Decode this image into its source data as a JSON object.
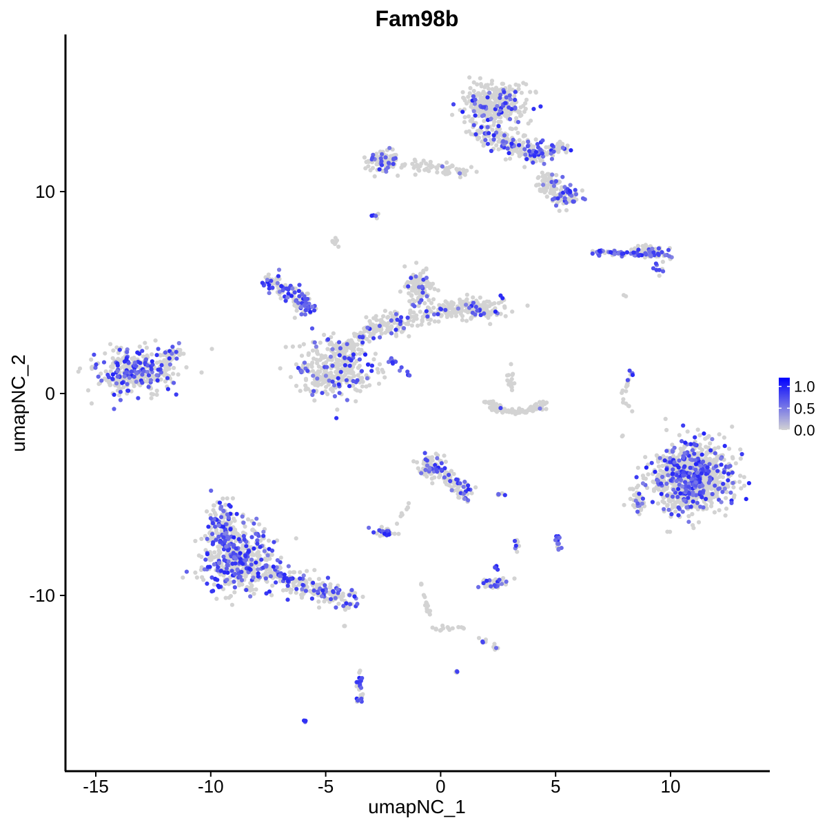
{
  "chart_data": {
    "type": "scatter",
    "title": "Fam98b",
    "xlabel": "umapNC_1",
    "ylabel": "umapNC_2",
    "xlim": [
      -16.5,
      14.5
    ],
    "ylim": [
      -18.5,
      17.8
    ],
    "x_ticks": [
      -15,
      -10,
      -5,
      0,
      5,
      10
    ],
    "x_tick_labels": [
      "-15",
      "-10",
      "-5",
      "0",
      "5",
      "10"
    ],
    "y_ticks": [
      -10,
      0,
      10
    ],
    "y_tick_labels": [
      "-10",
      "0",
      "10"
    ],
    "grid": false,
    "legend": {
      "position": "right",
      "type": "colorbar",
      "min": 0.0,
      "max": 1.2,
      "ticks": [
        0.0,
        0.5,
        1.0
      ],
      "tick_labels": [
        "0.0",
        "0.5",
        "1.0"
      ]
    },
    "colors": {
      "low": "#d3d3d3",
      "high": "#0000ff"
    },
    "clusters": [
      {
        "shape": "blob",
        "center": [
          -13.3,
          1.1
        ],
        "spread": [
          1.6,
          1.0
        ],
        "n": 320,
        "expr_rate": 0.28,
        "seed": 1
      },
      {
        "shape": "blob",
        "center": [
          -11.8,
          1.9
        ],
        "spread": [
          0.5,
          0.4
        ],
        "n": 40,
        "expr_rate": 0.2,
        "seed": 2
      },
      {
        "shape": "line",
        "from": [
          -7.5,
          5.7
        ],
        "to": [
          -5.5,
          4.0
        ],
        "width": 0.5,
        "n": 120,
        "expr_rate": 0.55,
        "seed": 3
      },
      {
        "shape": "blob",
        "center": [
          -4.6,
          1.2
        ],
        "spread": [
          1.6,
          1.3
        ],
        "n": 330,
        "expr_rate": 0.18,
        "seed": 4
      },
      {
        "shape": "line",
        "from": [
          -4.5,
          2.0
        ],
        "to": [
          -2.0,
          4.0
        ],
        "width": 0.4,
        "n": 110,
        "expr_rate": 0.1,
        "seed": 5
      },
      {
        "shape": "blob",
        "center": [
          -0.9,
          5.2
        ],
        "spread": [
          0.6,
          0.9
        ],
        "n": 110,
        "expr_rate": 0.15,
        "seed": 6
      },
      {
        "shape": "blob",
        "center": [
          1.6,
          4.2
        ],
        "spread": [
          1.2,
          0.5
        ],
        "n": 150,
        "expr_rate": 0.1,
        "seed": 7
      },
      {
        "shape": "line",
        "from": [
          -3.0,
          3.0
        ],
        "to": [
          1.0,
          4.3
        ],
        "width": 0.5,
        "n": 120,
        "expr_rate": 0.08,
        "seed": 8
      },
      {
        "shape": "line",
        "from": [
          -2.2,
          1.7
        ],
        "to": [
          -1.3,
          0.8
        ],
        "width": 0.12,
        "n": 18,
        "expr_rate": 0.7,
        "seed": 9
      },
      {
        "shape": "blob",
        "center": [
          -4.6,
          7.5
        ],
        "spread": [
          0.2,
          0.2
        ],
        "n": 10,
        "expr_rate": 0.0,
        "seed": 10
      },
      {
        "shape": "blob",
        "center": [
          -2.8,
          8.8
        ],
        "spread": [
          0.15,
          0.1
        ],
        "n": 6,
        "expr_rate": 0.5,
        "seed": 11
      },
      {
        "shape": "blob",
        "center": [
          -2.5,
          11.5
        ],
        "spread": [
          0.7,
          0.5
        ],
        "n": 110,
        "expr_rate": 0.15,
        "seed": 12
      },
      {
        "shape": "line",
        "from": [
          -1.5,
          11.3
        ],
        "to": [
          1.5,
          11.0
        ],
        "width": 0.3,
        "n": 60,
        "expr_rate": 0.1,
        "seed": 13
      },
      {
        "shape": "blob",
        "center": [
          2.3,
          14.3
        ],
        "spread": [
          1.3,
          0.9
        ],
        "n": 380,
        "expr_rate": 0.12,
        "seed": 14
      },
      {
        "shape": "line",
        "from": [
          1.5,
          13.0
        ],
        "to": [
          4.5,
          11.8
        ],
        "width": 0.6,
        "n": 220,
        "expr_rate": 0.25,
        "seed": 15
      },
      {
        "shape": "blob",
        "center": [
          4.7,
          10.5
        ],
        "spread": [
          0.5,
          0.5
        ],
        "n": 60,
        "expr_rate": 0.2,
        "seed": 16
      },
      {
        "shape": "blob",
        "center": [
          5.5,
          9.7
        ],
        "spread": [
          0.6,
          0.5
        ],
        "n": 70,
        "expr_rate": 0.4,
        "seed": 17
      },
      {
        "shape": "line",
        "from": [
          4.0,
          12.0
        ],
        "to": [
          5.5,
          12.1
        ],
        "width": 0.3,
        "n": 50,
        "expr_rate": 0.3,
        "seed": 18
      },
      {
        "shape": "line",
        "from": [
          6.7,
          7.0
        ],
        "to": [
          10.0,
          6.8
        ],
        "width": 0.15,
        "n": 90,
        "expr_rate": 0.45,
        "seed": 19
      },
      {
        "shape": "blob",
        "center": [
          9.0,
          7.1
        ],
        "spread": [
          0.6,
          0.2
        ],
        "n": 50,
        "expr_rate": 0.2,
        "seed": 20
      },
      {
        "shape": "blob",
        "center": [
          9.5,
          6.2
        ],
        "spread": [
          0.3,
          0.3
        ],
        "n": 10,
        "expr_rate": 0.5,
        "seed": 21
      },
      {
        "shape": "line",
        "from": [
          8.0,
          0.0
        ],
        "to": [
          8.3,
          1.1
        ],
        "width": 0.1,
        "n": 14,
        "expr_rate": 0.4,
        "seed": 22
      },
      {
        "shape": "line",
        "from": [
          7.9,
          -0.2
        ],
        "to": [
          8.3,
          -0.9
        ],
        "width": 0.08,
        "n": 6,
        "expr_rate": 0.1,
        "seed": 23
      },
      {
        "shape": "blob",
        "center": [
          10.9,
          -4.2
        ],
        "spread": [
          1.6,
          1.6
        ],
        "n": 900,
        "expr_rate": 0.26,
        "seed": 24
      },
      {
        "shape": "blob",
        "center": [
          8.6,
          -5.2
        ],
        "spread": [
          0.3,
          0.6
        ],
        "n": 30,
        "expr_rate": 0.2,
        "seed": 25
      },
      {
        "shape": "arc",
        "center": [
          3.3,
          -0.3
        ],
        "radius": 1.0,
        "n": 110,
        "expr_rate": 0.02,
        "seed": 26
      },
      {
        "shape": "blob",
        "center": [
          3.1,
          0.6
        ],
        "spread": [
          0.15,
          0.5
        ],
        "n": 16,
        "expr_rate": 0.0,
        "seed": 27
      },
      {
        "shape": "blob",
        "center": [
          -0.4,
          -3.6
        ],
        "spread": [
          0.5,
          0.5
        ],
        "n": 90,
        "expr_rate": 0.2,
        "seed": 28
      },
      {
        "shape": "line",
        "from": [
          0.0,
          -3.9
        ],
        "to": [
          1.2,
          -5.0
        ],
        "width": 0.35,
        "n": 70,
        "expr_rate": 0.25,
        "seed": 29
      },
      {
        "shape": "line",
        "from": [
          1.0,
          -5.0
        ],
        "to": [
          1.3,
          -5.6
        ],
        "width": 0.08,
        "n": 8,
        "expr_rate": 0.5,
        "seed": 30
      },
      {
        "shape": "line",
        "from": [
          -1.4,
          -5.5
        ],
        "to": [
          -1.9,
          -6.5
        ],
        "width": 0.1,
        "n": 8,
        "expr_rate": 0.1,
        "seed": 31
      },
      {
        "shape": "blob",
        "center": [
          -2.5,
          -6.9
        ],
        "spread": [
          0.4,
          0.2
        ],
        "n": 36,
        "expr_rate": 0.3,
        "seed": 32
      },
      {
        "shape": "blob",
        "center": [
          2.6,
          -5.0
        ],
        "spread": [
          0.3,
          0.1
        ],
        "n": 8,
        "expr_rate": 0.5,
        "seed": 33
      },
      {
        "shape": "blob",
        "center": [
          3.3,
          -7.5
        ],
        "spread": [
          0.1,
          0.3
        ],
        "n": 8,
        "expr_rate": 0.3,
        "seed": 34
      },
      {
        "shape": "blob",
        "center": [
          5.1,
          -7.3
        ],
        "spread": [
          0.12,
          0.35
        ],
        "n": 16,
        "expr_rate": 0.8,
        "seed": 35
      },
      {
        "shape": "blob",
        "center": [
          2.3,
          -9.4
        ],
        "spread": [
          0.6,
          0.25
        ],
        "n": 40,
        "expr_rate": 0.45,
        "seed": 36
      },
      {
        "shape": "blob",
        "center": [
          2.4,
          -8.6
        ],
        "spread": [
          0.12,
          0.15
        ],
        "n": 6,
        "expr_rate": 0.5,
        "seed": 37
      },
      {
        "shape": "blob",
        "center": [
          -9.5,
          -6.5
        ],
        "spread": [
          0.5,
          1.0
        ],
        "n": 130,
        "expr_rate": 0.3,
        "seed": 38
      },
      {
        "shape": "blob",
        "center": [
          -8.8,
          -8.2
        ],
        "spread": [
          1.3,
          1.5
        ],
        "n": 460,
        "expr_rate": 0.3,
        "seed": 39
      },
      {
        "shape": "line",
        "from": [
          -7.5,
          -8.8
        ],
        "to": [
          -3.9,
          -10.3
        ],
        "width": 0.6,
        "n": 220,
        "expr_rate": 0.3,
        "seed": 40
      },
      {
        "shape": "line",
        "from": [
          -0.9,
          -9.3
        ],
        "to": [
          -0.3,
          -11.7
        ],
        "width": 0.1,
        "n": 20,
        "expr_rate": 0.0,
        "seed": 41
      },
      {
        "shape": "line",
        "from": [
          -0.3,
          -11.7
        ],
        "to": [
          1.0,
          -11.6
        ],
        "width": 0.12,
        "n": 14,
        "expr_rate": 0.0,
        "seed": 42
      },
      {
        "shape": "line",
        "from": [
          1.5,
          -12.1
        ],
        "to": [
          2.5,
          -12.6
        ],
        "width": 0.12,
        "n": 12,
        "expr_rate": 0.3,
        "seed": 43
      },
      {
        "shape": "line",
        "from": [
          -3.5,
          -13.8
        ],
        "to": [
          -3.5,
          -15.3
        ],
        "width": 0.18,
        "n": 26,
        "expr_rate": 0.4,
        "seed": 44
      },
      {
        "shape": "blob",
        "center": [
          0.7,
          -13.8
        ],
        "spread": [
          0.08,
          0.08
        ],
        "n": 4,
        "expr_rate": 0.5,
        "seed": 45
      },
      {
        "shape": "blob",
        "center": [
          -5.9,
          -16.2
        ],
        "spread": [
          0.08,
          0.08
        ],
        "n": 4,
        "expr_rate": 0.5,
        "seed": 46
      },
      {
        "shape": "blob",
        "center": [
          -4.2,
          -11.5
        ],
        "spread": [
          0.1,
          0.1
        ],
        "n": 3,
        "expr_rate": 0.0,
        "seed": 47
      },
      {
        "shape": "blob",
        "center": [
          7.9,
          -2.1
        ],
        "spread": [
          0.1,
          0.1
        ],
        "n": 2,
        "expr_rate": 0.0,
        "seed": 48
      },
      {
        "shape": "blob",
        "center": [
          8.0,
          4.8
        ],
        "spread": [
          0.1,
          0.1
        ],
        "n": 2,
        "expr_rate": 0.0,
        "seed": 49
      }
    ]
  }
}
